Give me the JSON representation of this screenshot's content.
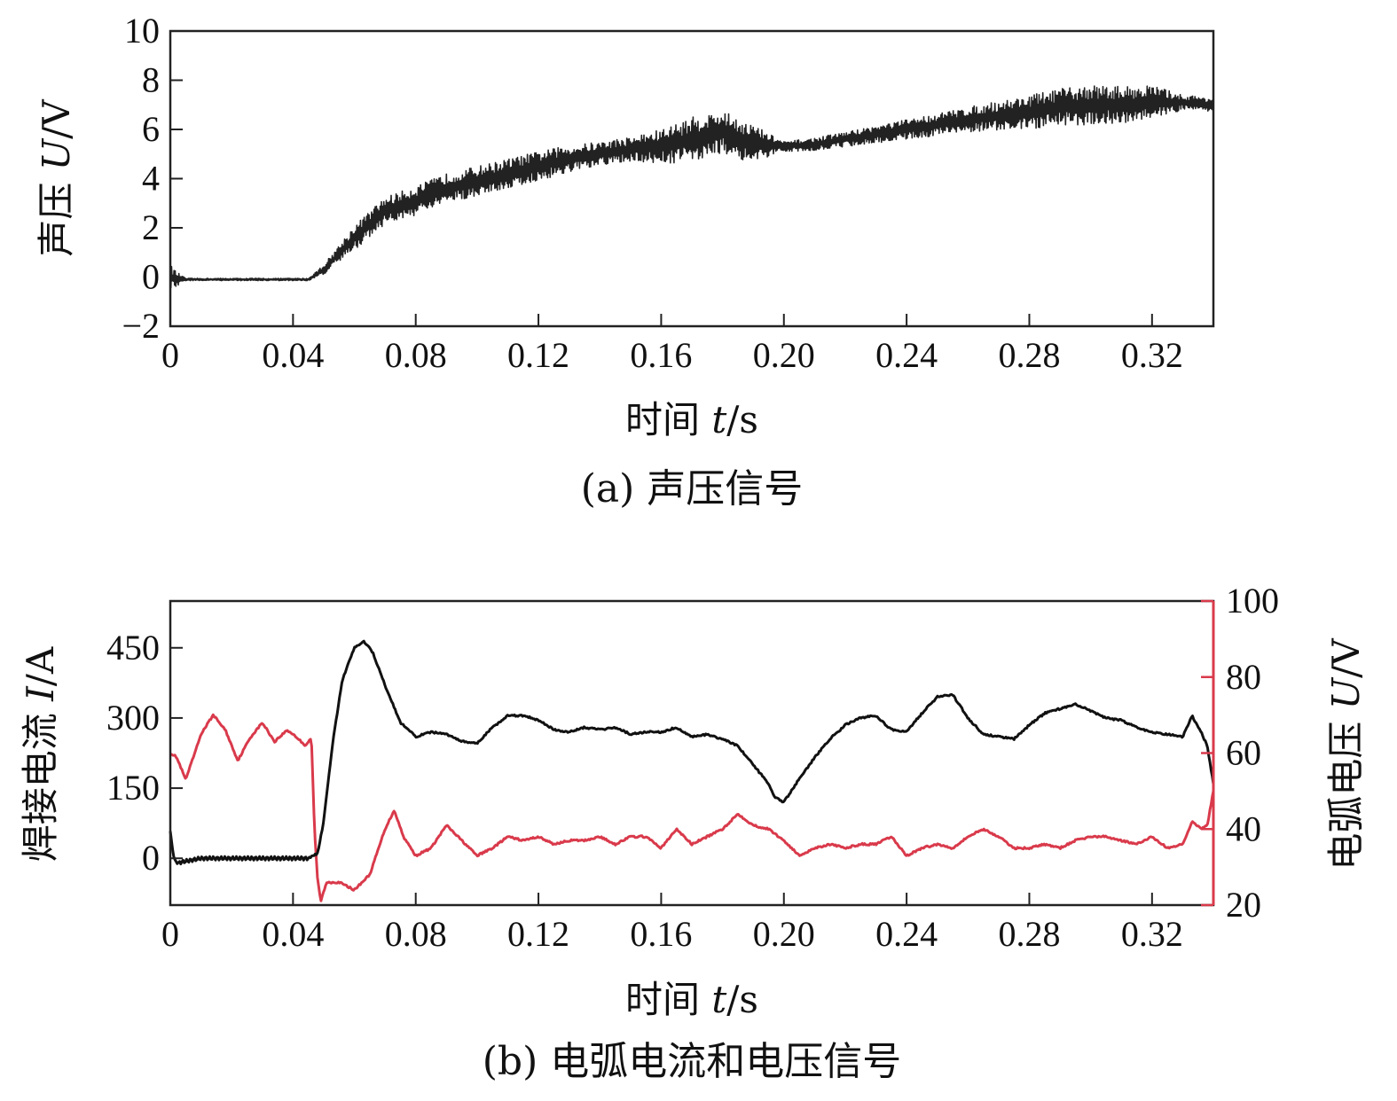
{
  "chart_data": [
    {
      "type": "line",
      "id": "a",
      "caption": "(a) 声压信号",
      "ylabel_prefix": "声压 ",
      "ylabel_var": "U",
      "ylabel_unit": "/V",
      "xlabel_prefix": "时间 ",
      "xlabel_var": "t",
      "xlabel_unit": "/s",
      "xlim": [
        0,
        0.34
      ],
      "ylim": [
        -2,
        10
      ],
      "xticks": [
        0,
        0.04,
        0.08,
        0.12,
        0.16,
        0.2,
        0.24,
        0.28,
        0.32
      ],
      "xtick_labels": [
        "0",
        "0.04",
        "0.08",
        "0.12",
        "0.16",
        "0.20",
        "0.24",
        "0.28",
        "0.32"
      ],
      "yticks": [
        -2,
        0,
        2,
        4,
        6,
        8,
        10
      ],
      "ytick_labels": [
        "−2",
        "0",
        "2",
        "4",
        "6",
        "8",
        "10"
      ],
      "series": [
        {
          "name": "声压",
          "color": "#222222",
          "envelope": {
            "x": [
              0,
              0.002,
              0.045,
              0.05,
              0.06,
              0.07,
              0.08,
              0.09,
              0.1,
              0.11,
              0.12,
              0.13,
              0.14,
              0.15,
              0.16,
              0.17,
              0.18,
              0.19,
              0.2,
              0.21,
              0.22,
              0.24,
              0.26,
              0.28,
              0.29,
              0.3,
              0.31,
              0.32,
              0.33,
              0.34
            ],
            "y": [
              0,
              -0.1,
              -0.1,
              0.3,
              1.6,
              2.7,
              3.1,
              3.6,
              3.9,
              4.2,
              4.5,
              4.8,
              5.0,
              5.2,
              5.3,
              5.6,
              5.9,
              5.4,
              5.3,
              5.4,
              5.6,
              6.0,
              6.4,
              6.7,
              6.9,
              7.0,
              7.0,
              7.1,
              7.1,
              7.0
            ]
          },
          "amplitude": {
            "x": [
              0,
              0.005,
              0.045,
              0.05,
              0.06,
              0.08,
              0.1,
              0.12,
              0.14,
              0.15,
              0.17,
              0.19,
              0.2,
              0.22,
              0.24,
              0.26,
              0.28,
              0.3,
              0.32,
              0.33,
              0.34
            ],
            "y": [
              0.5,
              0.05,
              0.05,
              0.2,
              0.5,
              0.6,
              0.6,
              0.6,
              0.5,
              0.5,
              0.9,
              0.8,
              0.2,
              0.3,
              0.4,
              0.5,
              0.7,
              0.8,
              0.7,
              0.3,
              0.3
            ]
          }
        }
      ]
    },
    {
      "type": "line",
      "id": "b",
      "caption": "(b) 电弧电流和电压信号",
      "ylabel_prefix": "焊接电流 ",
      "ylabel_var": "I",
      "ylabel_unit": "/A",
      "y2label_prefix": "电弧电压 ",
      "y2label_var": "U",
      "y2label_unit": "/V",
      "xlabel_prefix": "时间 ",
      "xlabel_var": "t",
      "xlabel_unit": "/s",
      "xlim": [
        0,
        0.34
      ],
      "ylim": [
        -100,
        550
      ],
      "y2lim": [
        20,
        100
      ],
      "xticks": [
        0,
        0.04,
        0.08,
        0.12,
        0.16,
        0.2,
        0.24,
        0.28,
        0.32
      ],
      "xtick_labels": [
        "0",
        "0.04",
        "0.08",
        "0.12",
        "0.16",
        "0.20",
        "0.24",
        "0.28",
        "0.32"
      ],
      "yticks": [
        0,
        150,
        300,
        450
      ],
      "ytick_labels": [
        "0",
        "150",
        "300",
        "450"
      ],
      "y2ticks": [
        20,
        40,
        60,
        80,
        100
      ],
      "y2tick_labels": [
        "20",
        "40",
        "60",
        "80",
        "100"
      ],
      "series": [
        {
          "name": "焊接电流",
          "axis": "left",
          "color": "#111111",
          "x": [
            0,
            0.001,
            0.002,
            0.01,
            0.02,
            0.03,
            0.045,
            0.048,
            0.05,
            0.053,
            0.056,
            0.06,
            0.063,
            0.066,
            0.07,
            0.075,
            0.08,
            0.085,
            0.09,
            0.095,
            0.1,
            0.105,
            0.11,
            0.115,
            0.12,
            0.125,
            0.13,
            0.135,
            0.14,
            0.145,
            0.15,
            0.155,
            0.16,
            0.165,
            0.17,
            0.175,
            0.18,
            0.185,
            0.19,
            0.195,
            0.197,
            0.2,
            0.205,
            0.21,
            0.215,
            0.22,
            0.225,
            0.23,
            0.235,
            0.24,
            0.245,
            0.25,
            0.255,
            0.26,
            0.265,
            0.27,
            0.275,
            0.28,
            0.285,
            0.29,
            0.295,
            0.3,
            0.305,
            0.31,
            0.315,
            0.32,
            0.325,
            0.33,
            0.333,
            0.336,
            0.338,
            0.34
          ],
          "y": [
            60,
            5,
            -10,
            0,
            0,
            0,
            0,
            10,
            80,
            250,
            380,
            450,
            465,
            440,
            370,
            290,
            260,
            270,
            265,
            250,
            245,
            280,
            305,
            305,
            295,
            275,
            270,
            280,
            275,
            280,
            265,
            270,
            270,
            280,
            260,
            265,
            255,
            240,
            200,
            160,
            130,
            120,
            170,
            215,
            255,
            285,
            300,
            305,
            275,
            270,
            310,
            345,
            350,
            300,
            265,
            260,
            255,
            285,
            310,
            320,
            330,
            315,
            300,
            295,
            280,
            270,
            265,
            260,
            305,
            270,
            240,
            160
          ]
        },
        {
          "name": "电弧电压",
          "axis": "right",
          "color": "#d93a4b",
          "x": [
            0,
            0.002,
            0.005,
            0.008,
            0.01,
            0.014,
            0.018,
            0.022,
            0.026,
            0.03,
            0.034,
            0.038,
            0.04,
            0.044,
            0.046,
            0.047,
            0.048,
            0.049,
            0.051,
            0.055,
            0.06,
            0.065,
            0.07,
            0.073,
            0.076,
            0.08,
            0.085,
            0.09,
            0.095,
            0.1,
            0.105,
            0.11,
            0.115,
            0.12,
            0.125,
            0.13,
            0.135,
            0.14,
            0.145,
            0.15,
            0.155,
            0.16,
            0.165,
            0.17,
            0.175,
            0.18,
            0.185,
            0.19,
            0.195,
            0.2,
            0.205,
            0.21,
            0.215,
            0.22,
            0.225,
            0.23,
            0.235,
            0.24,
            0.245,
            0.25,
            0.255,
            0.26,
            0.265,
            0.27,
            0.275,
            0.28,
            0.285,
            0.29,
            0.295,
            0.3,
            0.305,
            0.31,
            0.315,
            0.32,
            0.325,
            0.33,
            0.333,
            0.336,
            0.338,
            0.34
          ],
          "y": [
            60,
            59,
            53,
            60,
            65,
            70,
            66,
            58,
            64,
            68,
            63,
            66,
            65,
            62,
            64,
            40,
            27,
            21,
            26,
            26,
            24,
            28,
            40,
            45,
            38,
            33,
            35,
            41,
            37,
            33,
            35,
            38,
            37,
            38,
            36,
            37,
            37,
            38,
            36,
            38,
            38,
            35,
            40,
            36,
            38,
            40,
            44,
            41,
            40,
            37,
            33,
            35,
            36,
            35,
            36,
            36,
            38,
            33,
            35,
            36,
            35,
            38,
            40,
            38,
            35,
            35,
            36,
            35,
            37,
            38,
            38,
            37,
            36,
            38,
            35,
            36,
            42,
            40,
            41,
            50
          ]
        }
      ]
    }
  ]
}
